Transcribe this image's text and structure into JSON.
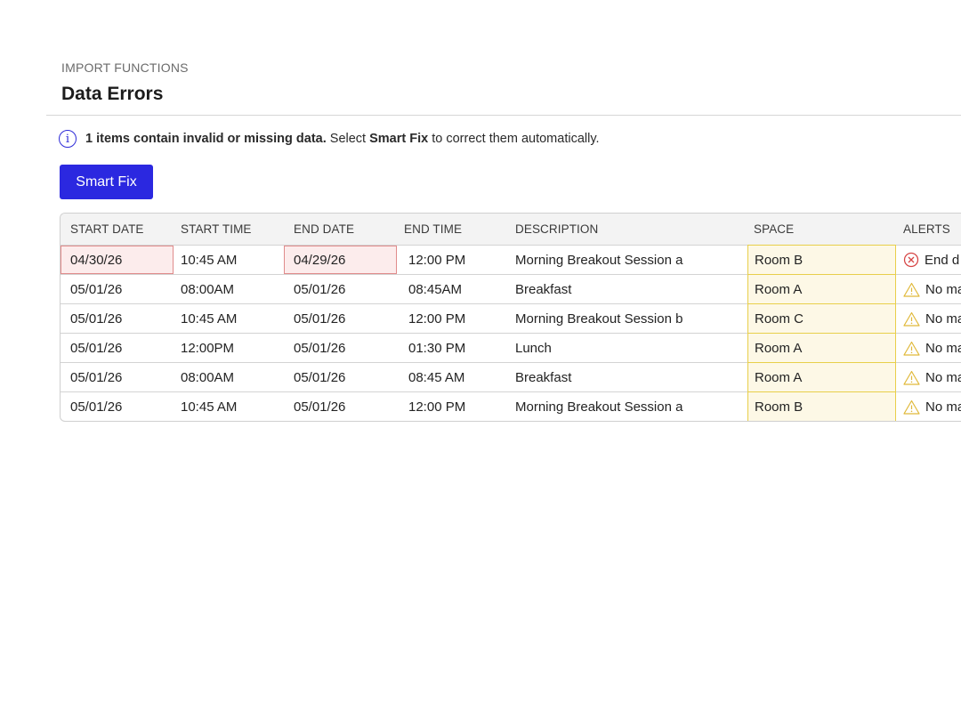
{
  "header": {
    "eyebrow": "IMPORT FUNCTIONS",
    "title": "Data Errors"
  },
  "notice": {
    "icon": "info-icon",
    "bold_text": "1 items contain invalid or missing data.",
    "text_before_action": " Select ",
    "action_name": "Smart Fix",
    "text_after_action": " to correct them automatically."
  },
  "smart_fix_button": {
    "label": "Smart Fix",
    "color": "#2b28e0"
  },
  "table": {
    "columns": [
      "START DATE",
      "START TIME",
      "END DATE",
      "END TIME",
      "DESCRIPTION",
      "SPACE",
      "ALERTS"
    ],
    "rows": [
      {
        "start_date": "04/30/26",
        "start_time": "10:45 AM",
        "end_date": "04/29/26",
        "end_time": "12:00 PM",
        "description": "Morning Breakout Session a",
        "space": "Room B",
        "alert_icon": "error-circle-x-icon",
        "alert": "End d"
      },
      {
        "start_date": "05/01/26",
        "start_time": "08:00AM",
        "end_date": "05/01/26",
        "end_time": "08:45AM",
        "description": "Breakfast",
        "space": "Room A",
        "alert_icon": "warning-triangle-icon",
        "alert": "No ma"
      },
      {
        "start_date": "05/01/26",
        "start_time": "10:45 AM",
        "end_date": "05/01/26",
        "end_time": "12:00 PM",
        "description": "Morning Breakout Session b",
        "space": "Room C",
        "alert_icon": "warning-triangle-icon",
        "alert": "No ma"
      },
      {
        "start_date": "05/01/26",
        "start_time": "12:00PM",
        "end_date": "05/01/26",
        "end_time": "01:30 PM",
        "description": "Lunch",
        "space": "Room A",
        "alert_icon": "warning-triangle-icon",
        "alert": "No ma"
      },
      {
        "start_date": "05/01/26",
        "start_time": "08:00AM",
        "end_date": "05/01/26",
        "end_time": "08:45 AM",
        "description": "Breakfast",
        "space": "Room A",
        "alert_icon": "warning-triangle-icon",
        "alert": "No ma"
      },
      {
        "start_date": "05/01/26",
        "start_time": "10:45 AM",
        "end_date": "05/01/26",
        "end_time": "12:00 PM",
        "description": "Morning Breakout Session a",
        "space": "Room B",
        "alert_icon": "warning-triangle-icon",
        "alert": "No ma"
      }
    ]
  },
  "colors": {
    "error_fill": "#fcecec",
    "error_border": "#e08b8b",
    "warning_fill": "#fdf8e6",
    "warning_border": "#e8cf4a"
  }
}
